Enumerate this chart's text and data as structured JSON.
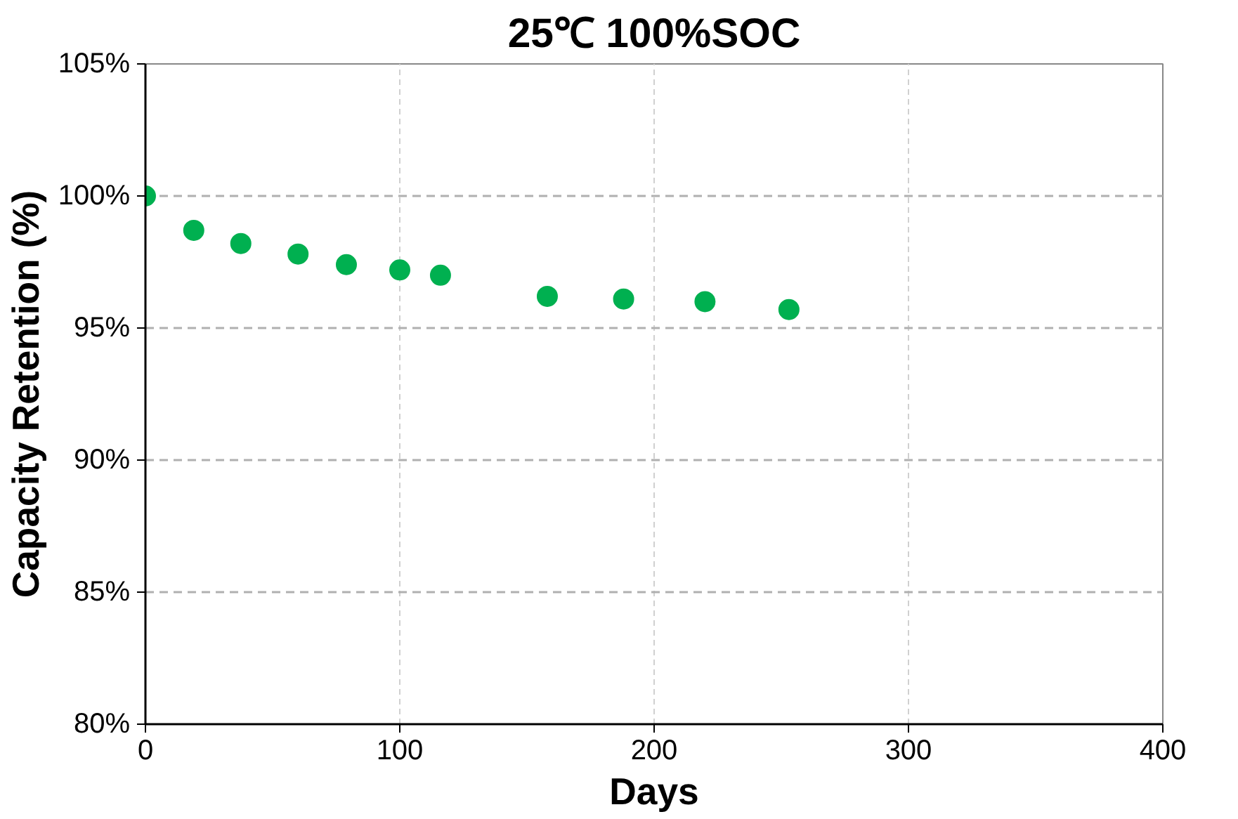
{
  "chart_data": {
    "type": "scatter",
    "title": "25℃ 100%SOC",
    "xlabel": "Days",
    "ylabel": "Capacity Retention (%)",
    "x": [
      0,
      19,
      37.5,
      60,
      79,
      100,
      116,
      158,
      188,
      220,
      253
    ],
    "series": [
      {
        "color": "#00b050",
        "values": [
          100,
          98.7,
          98.2,
          97.8,
          97.4,
          97.2,
          97.0,
          96.2,
          96.1,
          96.0,
          95.7
        ]
      }
    ],
    "xlim": [
      0,
      400
    ],
    "xticks": [
      0,
      100,
      200,
      300,
      400
    ],
    "ylim": [
      80,
      105
    ],
    "yticks": [
      {
        "value": 80,
        "label": "80%"
      },
      {
        "value": 85,
        "label": "85%"
      },
      {
        "value": 90,
        "label": "90%"
      },
      {
        "value": 95,
        "label": "95%"
      },
      {
        "value": 100,
        "label": "100%"
      },
      {
        "value": 105,
        "label": "105%"
      }
    ],
    "grid": true,
    "marker": "circle"
  }
}
